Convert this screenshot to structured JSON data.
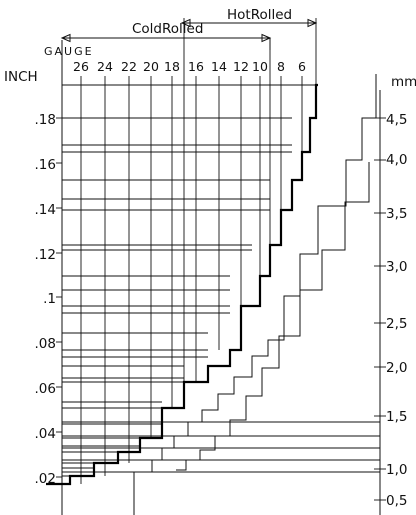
{
  "header": {
    "cold_rolled_label": "ColdRolled",
    "hot_rolled_label": "HotRolled"
  },
  "gauge_axis": {
    "title": "GAUGE",
    "numbers": [
      "26",
      "24",
      "22",
      "20",
      "18",
      "16",
      "14",
      "12",
      "10",
      "8",
      "6"
    ]
  },
  "inch_axis": {
    "unit_label": "INCH",
    "ticks": [
      ".18",
      ".16",
      ".14",
      ".12",
      ".1",
      ".08",
      ".06",
      ".04",
      ".02"
    ]
  },
  "mm_axis": {
    "unit_label": "mm",
    "ticks": [
      "4,5",
      "4,0",
      "3,5",
      "3,0",
      "2,5",
      "2,0",
      "1,5",
      "1,0",
      "0,5"
    ]
  },
  "chart_data": {
    "type": "step",
    "inch_ticks": [
      0.18,
      0.16,
      0.14,
      0.12,
      0.1,
      0.08,
      0.06,
      0.04,
      0.02
    ],
    "mm_ticks": [
      4.5,
      4.0,
      3.5,
      3.0,
      2.5,
      2.0,
      1.5,
      1.0,
      0.5
    ],
    "gauge_labels": [
      26,
      24,
      22,
      20,
      18,
      16,
      14,
      12,
      10,
      8,
      6
    ],
    "cold_rolled_gauge_range": [
      26,
      10
    ],
    "hot_rolled_gauge_range": [
      16,
      6
    ]
  }
}
